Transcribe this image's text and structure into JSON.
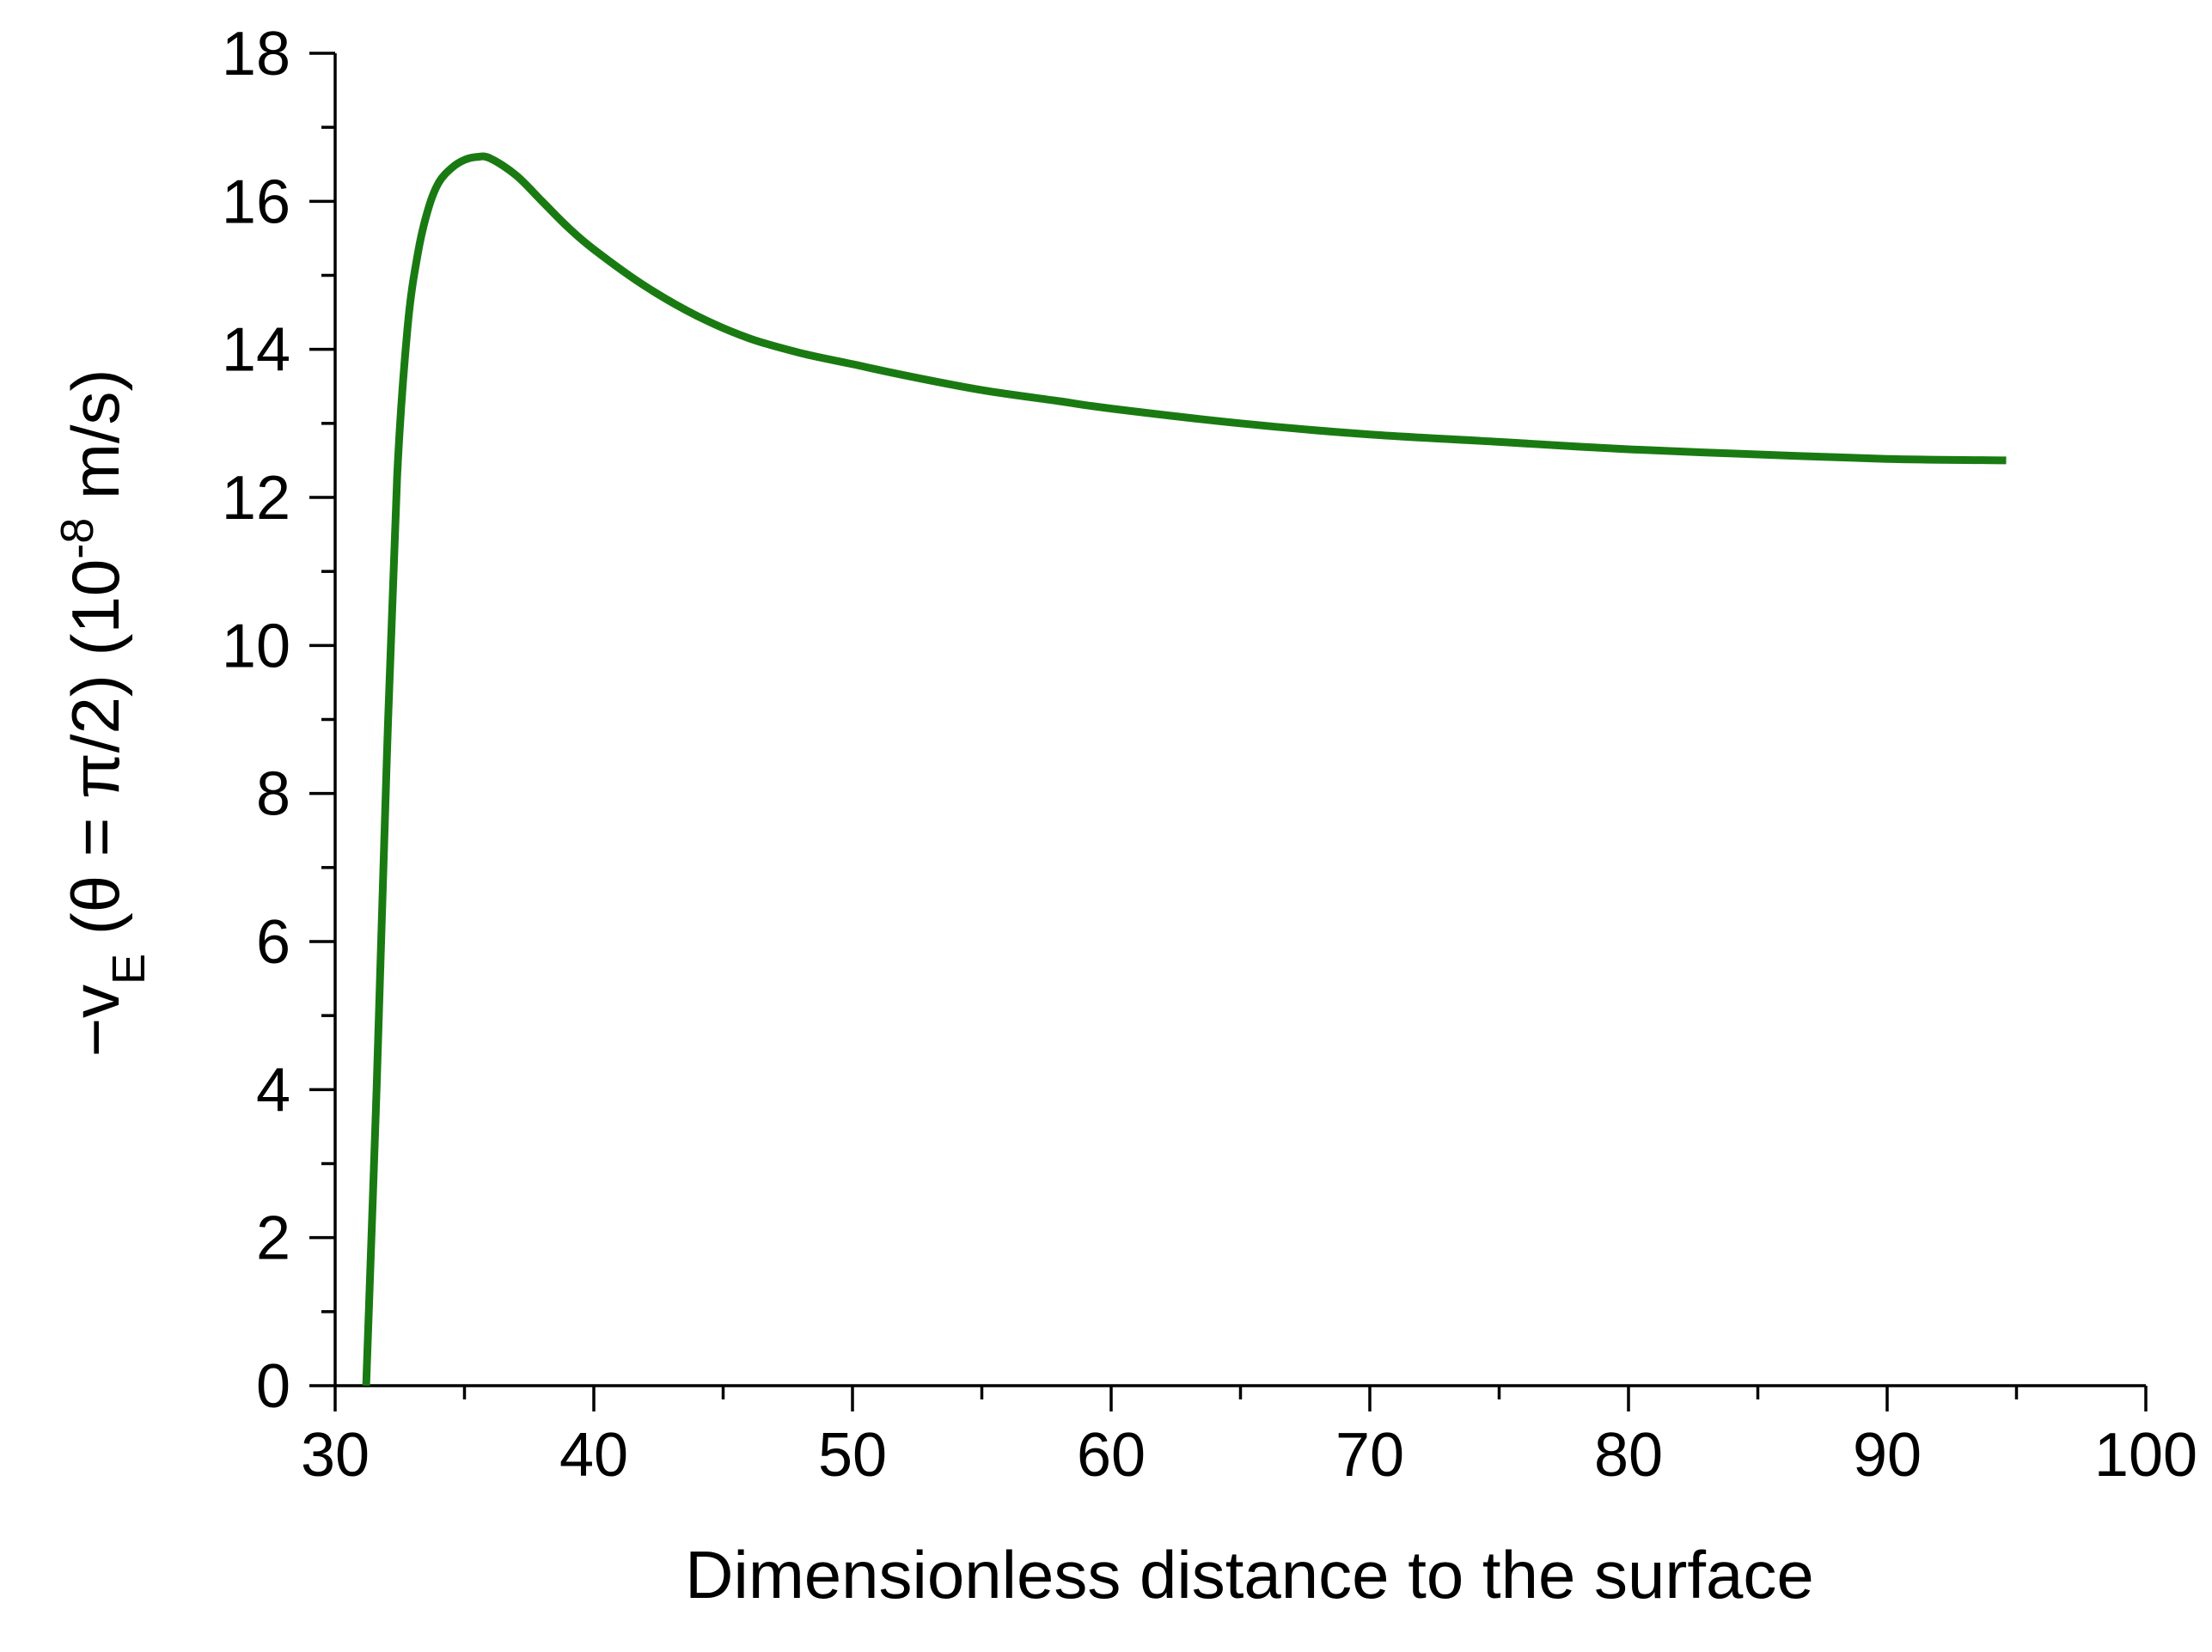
{
  "chart_data": {
    "type": "line",
    "xlabel": "Dimensionless distance to the surface",
    "ylabel": {
      "prefix": "−v",
      "subscript": "E",
      "middle": " (θ = π/2) (10",
      "superscript": "-8",
      "suffix": " m/s)"
    },
    "xlim": [
      30,
      100
    ],
    "ylim": [
      0,
      18
    ],
    "x_ticks": [
      30,
      40,
      50,
      60,
      70,
      80,
      90,
      100
    ],
    "x_tick_labels": [
      "30",
      "40",
      "50",
      "60",
      "70",
      "80",
      "90",
      "100"
    ],
    "y_ticks": [
      0,
      2,
      4,
      6,
      8,
      10,
      12,
      14,
      16,
      18
    ],
    "y_tick_labels": [
      "0",
      "2",
      "4",
      "6",
      "8",
      "10",
      "12",
      "14",
      "16",
      "18"
    ],
    "grid": false,
    "series": [
      {
        "color": "#1a7a12",
        "x": [
          31.2,
          31.6,
          32.0,
          32.4,
          32.8,
          33.2,
          33.6,
          34.0,
          34.5,
          35.0,
          35.5,
          36.0,
          37.0,
          38.0,
          39.0,
          40.0,
          42.0,
          44.0,
          46.0,
          48.0,
          50.0,
          52.0,
          55.0,
          58.0,
          60.0,
          65.0,
          70.0,
          75.0,
          80.0,
          85.0,
          90.0,
          94.6
        ],
        "y": [
          0.0,
          4.0,
          8.5,
          12.3,
          14.3,
          15.3,
          15.9,
          16.25,
          16.45,
          16.56,
          16.6,
          16.58,
          16.35,
          16.0,
          15.65,
          15.35,
          14.85,
          14.45,
          14.15,
          13.95,
          13.8,
          13.65,
          13.45,
          13.3,
          13.2,
          13.0,
          12.85,
          12.75,
          12.65,
          12.58,
          12.52,
          12.5
        ]
      }
    ]
  }
}
